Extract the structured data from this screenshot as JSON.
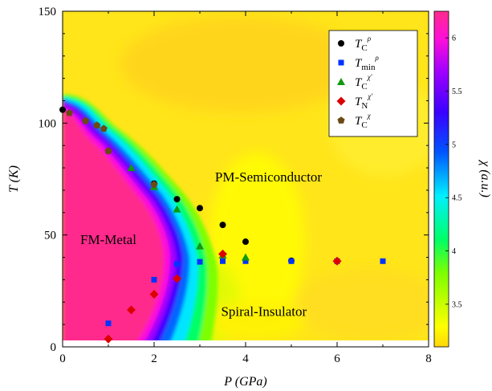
{
  "chart_data": {
    "type": "scatter",
    "xlabel": "P (GPa)",
    "ylabel": "T (K)",
    "xlim": [
      0,
      8
    ],
    "ylim": [
      0,
      150
    ],
    "xticks": [
      "0",
      "2",
      "4",
      "6",
      "8"
    ],
    "yticks": [
      "0",
      "50",
      "100",
      "150"
    ],
    "colorbar": {
      "label": "χ (a.u.)",
      "range": [
        3.1,
        6.25
      ],
      "ticks": [
        "3.5",
        "4",
        "4.5",
        "5",
        "5.5",
        "6"
      ],
      "colors": [
        "#ffd60a",
        "#ffff00",
        "#7dff00",
        "#00ff66",
        "#00f0ff",
        "#0055ff",
        "#3a00ff",
        "#a000ff",
        "#ff10d8",
        "#ff2a8c"
      ]
    },
    "background_map": "heatmap of χ: pink FM-Metal region at low P / low T, yellow elsewhere, sharp colored band along the phase boundary",
    "regions": [
      {
        "name": "FM-Metal",
        "x": 1.0,
        "y": 48
      },
      {
        "name": "PM-Semiconductor",
        "x": 4.5,
        "y": 76
      },
      {
        "name": "Spiral-Insulator",
        "x": 4.4,
        "y": 16
      }
    ],
    "legend_position": "top-right",
    "series": [
      {
        "name": "T_C^ρ",
        "label": "TC",
        "sup": "ρ",
        "marker": "circle",
        "color": "#000000",
        "points": [
          [
            0.0,
            106
          ],
          [
            1.0,
            87.5
          ],
          [
            2.0,
            73
          ],
          [
            2.5,
            66
          ],
          [
            3.0,
            62
          ],
          [
            3.5,
            54.5
          ],
          [
            4.0,
            47
          ],
          [
            5.0,
            38.5
          ]
        ]
      },
      {
        "name": "T_min^ρ",
        "label": "Tmin",
        "sup": "ρ",
        "marker": "square",
        "color": "#0033ff",
        "points": [
          [
            1.0,
            10.5
          ],
          [
            2.0,
            30
          ],
          [
            2.5,
            37
          ],
          [
            3.0,
            38
          ],
          [
            3.5,
            38.3
          ],
          [
            4.0,
            38.3
          ],
          [
            5.0,
            38.3
          ],
          [
            6.0,
            38.3
          ],
          [
            7.0,
            38.3
          ]
        ]
      },
      {
        "name": "T_C^χ'",
        "label": "TC",
        "sup": "χ'",
        "marker": "triangle",
        "color": "#109910",
        "points": [
          [
            1.5,
            80
          ],
          [
            2.0,
            71.5
          ],
          [
            2.5,
            61.5
          ],
          [
            3.0,
            45
          ],
          [
            3.5,
            41
          ],
          [
            4.0,
            40
          ]
        ]
      },
      {
        "name": "T_N^χ'",
        "label": "TN",
        "sup": "χ'",
        "marker": "diamond",
        "color": "#dd0000",
        "points": [
          [
            1.0,
            3.5
          ],
          [
            1.5,
            16.5
          ],
          [
            2.0,
            23.5
          ],
          [
            2.5,
            30.5
          ],
          [
            3.5,
            41.5
          ],
          [
            6.0,
            38.3
          ]
        ]
      },
      {
        "name": "T_C^χ",
        "label": "TC",
        "sup": "χ",
        "marker": "pentagon",
        "color": "#6b4a14",
        "points": [
          [
            0.15,
            104.5
          ],
          [
            0.5,
            101
          ],
          [
            0.75,
            99
          ],
          [
            0.9,
            97.5
          ],
          [
            1.0,
            87.5
          ],
          [
            2.0,
            72.5
          ]
        ]
      }
    ]
  }
}
